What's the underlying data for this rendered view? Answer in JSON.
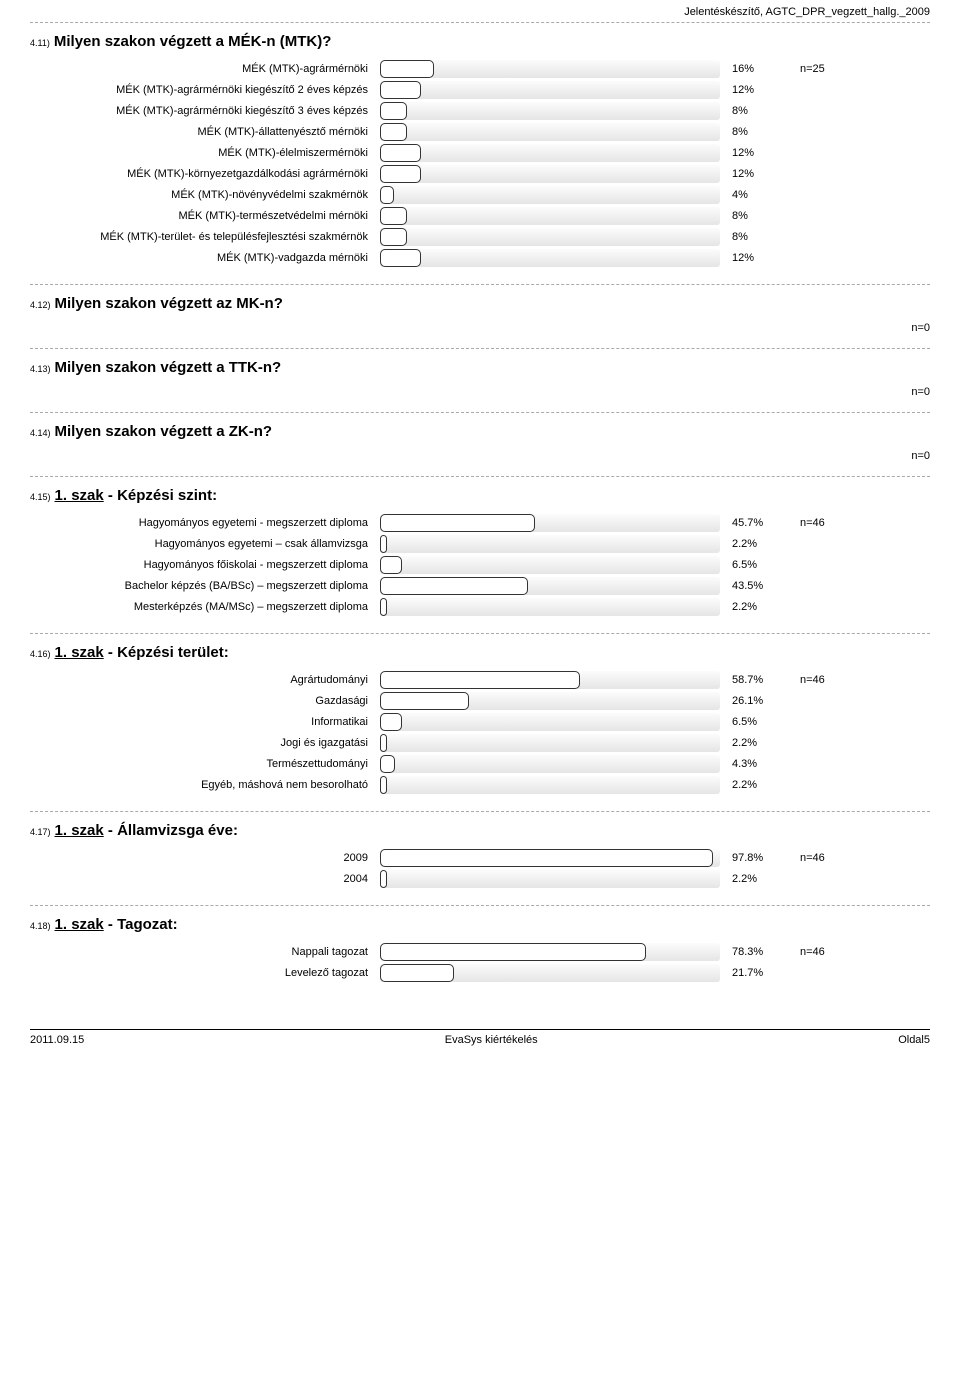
{
  "header": {
    "doc_title": "Jelentéskészítő, AGTC_DPR_vegzett_hallg._2009"
  },
  "sections": [
    {
      "num": "4.11)",
      "title": "Milyen szakon végzett a MÉK-n (MTK)?",
      "underline_prefix": null,
      "n": "n=25",
      "max_pct": 100,
      "rows": [
        {
          "label": "MÉK (MTK)-agrármérnöki",
          "pct": 16
        },
        {
          "label": "MÉK (MTK)-agrármérnöki kiegészítő 2 éves képzés",
          "pct": 12
        },
        {
          "label": "MÉK (MTK)-agrármérnöki kiegészítő 3 éves képzés",
          "pct": 8
        },
        {
          "label": "MÉK (MTK)-állattenyésztő mérnöki",
          "pct": 8
        },
        {
          "label": "MÉK (MTK)-élelmiszermérnöki",
          "pct": 12
        },
        {
          "label": "MÉK (MTK)-környezetgazdálkodási agrármérnöki",
          "pct": 12
        },
        {
          "label": "MÉK (MTK)-növényvédelmi szakmérnök",
          "pct": 4
        },
        {
          "label": "MÉK (MTK)-természetvédelmi mérnöki",
          "pct": 8
        },
        {
          "label": "MÉK (MTK)-terület- és településfejlesztési szakmérnök",
          "pct": 8
        },
        {
          "label": "MÉK (MTK)-vadgazda mérnöki",
          "pct": 12
        }
      ]
    },
    {
      "num": "4.12)",
      "title": "Milyen szakon végzett az MK-n?",
      "underline_prefix": null,
      "n": "n=0",
      "rows": []
    },
    {
      "num": "4.13)",
      "title": "Milyen szakon végzett a TTK-n?",
      "underline_prefix": null,
      "n": "n=0",
      "rows": []
    },
    {
      "num": "4.14)",
      "title": "Milyen szakon végzett a ZK-n?",
      "underline_prefix": null,
      "n": "n=0",
      "rows": []
    },
    {
      "num": "4.15)",
      "title_plain": " - Képzési szint:",
      "underline_prefix": "1. szak",
      "n": "n=46",
      "max_pct": 100,
      "rows": [
        {
          "label": "Hagyományos egyetemi  - megszerzett diploma",
          "pct": 45.7
        },
        {
          "label": "Hagyományos egyetemi – csak államvizsga",
          "pct": 2.2
        },
        {
          "label": "Hagyományos főiskolai - megszerzett diploma",
          "pct": 6.5
        },
        {
          "label": "Bachelor képzés (BA/BSc) – megszerzett diploma",
          "pct": 43.5
        },
        {
          "label": "Mesterképzés (MA/MSc) – megszerzett diploma",
          "pct": 2.2
        }
      ]
    },
    {
      "num": "4.16)",
      "title_plain": " - Képzési terület:",
      "underline_prefix": "1. szak",
      "n": "n=46",
      "max_pct": 100,
      "rows": [
        {
          "label": "Agrártudományi",
          "pct": 58.7
        },
        {
          "label": "Gazdasági",
          "pct": 26.1
        },
        {
          "label": "Informatikai",
          "pct": 6.5
        },
        {
          "label": "Jogi és igazgatási",
          "pct": 2.2
        },
        {
          "label": "Természettudományi",
          "pct": 4.3
        },
        {
          "label": "Egyéb, máshová nem besorolható",
          "pct": 2.2
        }
      ]
    },
    {
      "num": "4.17)",
      "title_plain": " - Államvizsga éve:",
      "underline_prefix": "1. szak",
      "n": "n=46",
      "max_pct": 100,
      "rows": [
        {
          "label": "2009",
          "pct": 97.8
        },
        {
          "label": "2004",
          "pct": 2.2
        }
      ]
    },
    {
      "num": "4.18)",
      "title_plain": " - Tagozat:",
      "underline_prefix": "1. szak",
      "n": "n=46",
      "max_pct": 100,
      "rows": [
        {
          "label": "Nappali tagozat",
          "pct": 78.3
        },
        {
          "label": "Levelező tagozat",
          "pct": 21.7
        }
      ]
    }
  ],
  "footer": {
    "left": "2011.09.15",
    "center": "EvaSys kiértékelés",
    "right": "Oldal5"
  },
  "style": {
    "bar_bg_gradient_top": "#fcfcfc",
    "bar_bg_gradient_bottom": "#e5e5e5",
    "bar_fill_bg": "#ffffff",
    "bar_fill_border": "#333333",
    "divider_color": "#aaaaaa"
  }
}
